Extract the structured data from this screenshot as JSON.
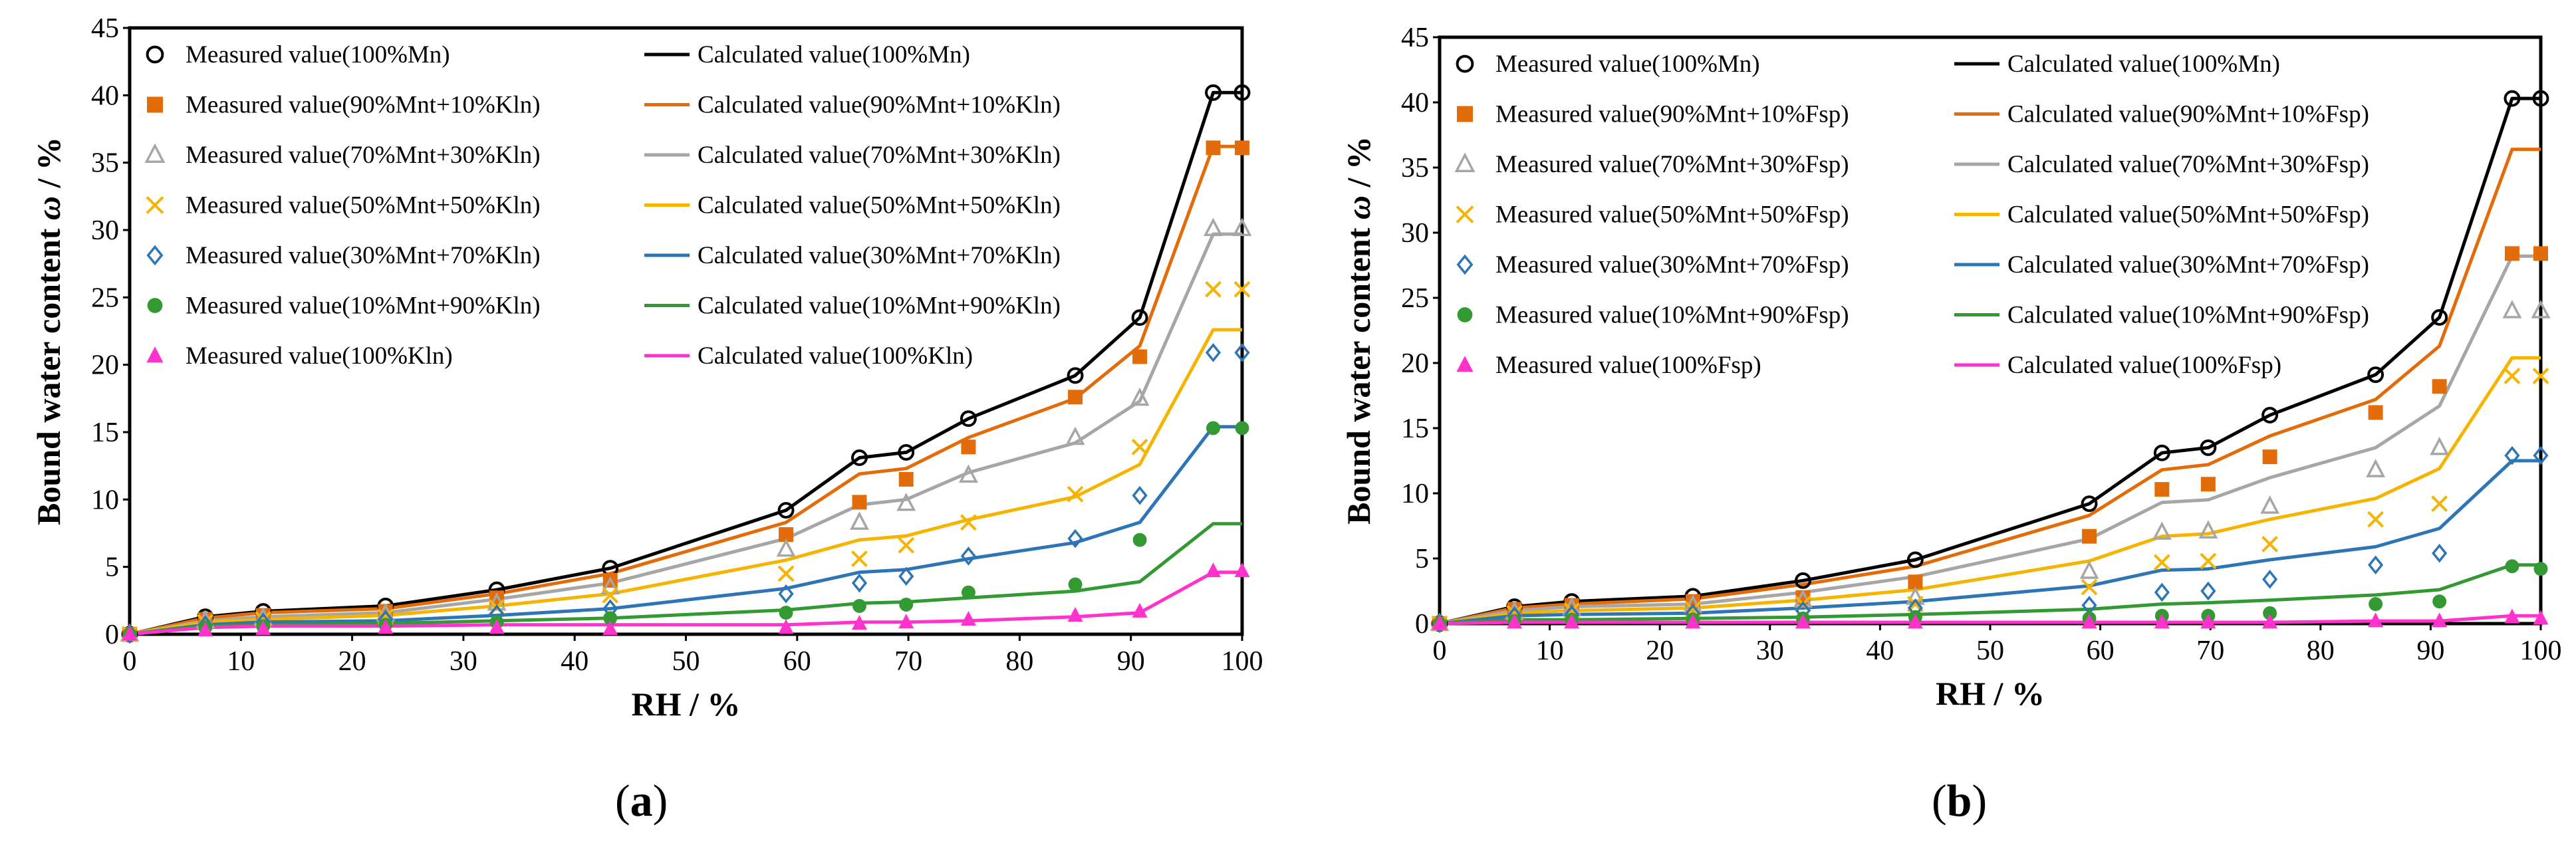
{
  "chart_data": [
    {
      "type": "scatter",
      "panel_label": "a",
      "xlabel": "RH / %",
      "ylabel_prefix": "Bound water content ",
      "ylabel_symbol": "ω",
      "ylabel_suffix": " / %",
      "xlim": [
        0,
        100
      ],
      "ylim": [
        0,
        45
      ],
      "xticks": [
        0,
        10,
        20,
        30,
        40,
        50,
        60,
        70,
        80,
        90,
        100
      ],
      "yticks": [
        0,
        5,
        10,
        15,
        20,
        25,
        30,
        35,
        40,
        45
      ],
      "x": [
        0,
        6.8,
        12,
        23,
        33,
        43.2,
        59,
        65.6,
        69.8,
        75.4,
        85,
        90.8,
        97.4,
        100
      ],
      "series": [
        {
          "measured_name": "Measured value(100%Mn)",
          "calculated_name": "Calculated value(100%Mn)",
          "marker": "circle-open",
          "color": "#000000",
          "measured": [
            0,
            1.3,
            1.7,
            2.1,
            3.3,
            4.9,
            9.2,
            13.1,
            13.5,
            16,
            19.2,
            23.5,
            40.2,
            40.2
          ],
          "calculated": [
            0,
            1.3,
            1.7,
            2.1,
            3.3,
            4.9,
            9.2,
            13.1,
            13.5,
            16,
            19.2,
            23.5,
            40.2,
            40.2
          ]
        },
        {
          "measured_name": "Measured value(90%Mnt+10%Kln)",
          "calculated_name": "Calculated value(90%Mnt+10%Kln)",
          "marker": "square",
          "color": "#E36C0A",
          "measured": [
            0,
            1.1,
            1.4,
            1.7,
            2.7,
            4,
            7.4,
            9.8,
            11.5,
            13.9,
            17.6,
            20.6,
            36.1,
            36.1
          ],
          "calculated": [
            0,
            1.2,
            1.6,
            1.9,
            3,
            4.5,
            8.3,
            11.9,
            12.3,
            14.6,
            17.5,
            21.4,
            36.2,
            36.2
          ]
        },
        {
          "measured_name": "Measured value(70%Mnt+30%Kln)",
          "calculated_name": "Calculated value(70%Mnt+30%Kln)",
          "marker": "triangle-open",
          "color": "#A6A6A6",
          "measured": [
            0,
            1,
            1.2,
            1.5,
            2.3,
            3.5,
            6.3,
            8.3,
            9.7,
            11.8,
            14.6,
            17.5,
            30.1,
            30.1
          ],
          "calculated": [
            0,
            1,
            1.3,
            1.6,
            2.6,
            3.8,
            7.1,
            9.6,
            10,
            12,
            14.2,
            17.3,
            29.7,
            29.7
          ]
        },
        {
          "measured_name": "Measured value(50%Mnt+50%Kln)",
          "calculated_name": "Calculated value(50%Mnt+50%Kln)",
          "marker": "x",
          "color": "#F4B400",
          "measured": [
            0,
            0.9,
            1.1,
            1.3,
            2,
            2.9,
            4.5,
            5.6,
            6.6,
            8.3,
            10.4,
            13.9,
            25.6,
            25.6
          ],
          "calculated": [
            0,
            0.9,
            1.1,
            1.4,
            2.1,
            3,
            5.5,
            7,
            7.3,
            8.5,
            10.2,
            12.6,
            22.6,
            22.6
          ]
        },
        {
          "measured_name": "Measured value(30%Mnt+70%Kln)",
          "calculated_name": "Calculated value(30%Mnt+70%Kln)",
          "marker": "diamond-open",
          "color": "#2E75B6",
          "measured": [
            0,
            0.7,
            0.9,
            1.1,
            1.5,
            1.9,
            3,
            3.8,
            4.3,
            5.8,
            7.1,
            10.3,
            20.9,
            20.9
          ],
          "calculated": [
            0,
            0.7,
            0.9,
            1,
            1.4,
            1.9,
            3.4,
            4.6,
            4.8,
            5.6,
            6.8,
            8.3,
            15.4,
            15.4
          ]
        },
        {
          "measured_name": "Measured value(10%Mnt+90%Kln)",
          "calculated_name": "Calculated value(10%Mnt+90%Kln)",
          "marker": "circle",
          "color": "#339933",
          "measured": [
            0,
            0.5,
            0.6,
            0.7,
            0.9,
            1.2,
            1.6,
            2.1,
            2.2,
            3.1,
            3.7,
            7,
            15.3,
            15.3
          ],
          "calculated": [
            0,
            0.6,
            0.7,
            0.8,
            1,
            1.2,
            1.8,
            2.3,
            2.4,
            2.7,
            3.2,
            3.9,
            8.2,
            8.2
          ]
        },
        {
          "measured_name": "Measured value(100%Kln)",
          "calculated_name": "Calculated value(100%Kln)",
          "marker": "triangle",
          "color": "#FF33CC",
          "measured": [
            0,
            0.3,
            0.4,
            0.5,
            0.5,
            0.4,
            0.5,
            0.8,
            0.9,
            1.1,
            1.4,
            1.7,
            4.7,
            4.7
          ],
          "calculated": [
            0,
            0.5,
            0.6,
            0.6,
            0.7,
            0.7,
            0.7,
            0.9,
            0.9,
            1,
            1.3,
            1.6,
            4.6,
            4.6
          ]
        }
      ]
    },
    {
      "type": "scatter",
      "panel_label": "b",
      "xlabel": "RH / %",
      "ylabel_prefix": "Bound water content ",
      "ylabel_symbol": "ω",
      "ylabel_suffix": " / %",
      "xlim": [
        0,
        100
      ],
      "ylim": [
        0,
        45
      ],
      "xticks": [
        0,
        10,
        20,
        30,
        40,
        50,
        60,
        70,
        80,
        90,
        100
      ],
      "yticks": [
        0,
        5,
        10,
        15,
        20,
        25,
        30,
        35,
        40,
        45
      ],
      "x": [
        0,
        6.8,
        12,
        23,
        33,
        43.2,
        59,
        65.6,
        69.8,
        75.4,
        85,
        90.8,
        97.4,
        100
      ],
      "series": [
        {
          "measured_name": "Measured value(100%Mn)",
          "calculated_name": "Calculated value(100%Mn)",
          "marker": "circle-open",
          "color": "#000000",
          "measured": [
            0,
            1.3,
            1.7,
            2.1,
            3.3,
            4.9,
            9.2,
            13.1,
            13.5,
            16,
            19.1,
            23.5,
            40.3,
            40.3
          ],
          "calculated": [
            0,
            1.3,
            1.7,
            2.1,
            3.3,
            4.9,
            9.2,
            13.1,
            13.5,
            16,
            19.1,
            23.5,
            40.3,
            40.3
          ]
        },
        {
          "measured_name": "Measured value(90%Mnt+10%Fsp)",
          "calculated_name": "Calculated value(90%Mnt+10%Fsp)",
          "marker": "square",
          "color": "#E36C0A",
          "measured": [
            0,
            1.1,
            1.4,
            1.7,
            2,
            3.2,
            6.7,
            10.3,
            10.7,
            12.8,
            16.2,
            18.2,
            28.4,
            28.4
          ],
          "calculated": [
            0,
            1.2,
            1.5,
            1.9,
            3,
            4.4,
            8.3,
            11.8,
            12.2,
            14.4,
            17.2,
            21.3,
            36.4,
            36.4
          ]
        },
        {
          "measured_name": "Measured value(70%Mnt+30%Fsp)",
          "calculated_name": "Calculated value(70%Mnt+30%Fsp)",
          "marker": "triangle-open",
          "color": "#A6A6A6",
          "measured": [
            0,
            0.9,
            1.2,
            1.4,
            1.8,
            2,
            4,
            7,
            7.1,
            9,
            11.8,
            13.5,
            24,
            24
          ],
          "calculated": [
            0,
            1,
            1.3,
            1.5,
            2.4,
            3.6,
            6.5,
            9.3,
            9.5,
            11.2,
            13.5,
            16.7,
            28.2,
            28.2
          ]
        },
        {
          "measured_name": "Measured value(50%Mnt+50%Fsp)",
          "calculated_name": "Calculated value(50%Mnt+50%Fsp)",
          "marker": "x",
          "color": "#F4B400",
          "measured": [
            0,
            0.8,
            1,
            1.1,
            1.5,
            1.5,
            2.8,
            4.7,
            4.8,
            6.1,
            8,
            9.2,
            19,
            19
          ],
          "calculated": [
            0,
            0.8,
            1,
            1.2,
            1.8,
            2.6,
            4.8,
            6.7,
            6.9,
            8,
            9.6,
            11.9,
            20.4,
            20.4
          ]
        },
        {
          "measured_name": "Measured value(30%Mnt+70%Fsp)",
          "calculated_name": "Calculated value(30%Mnt+70%Fsp)",
          "marker": "diamond-open",
          "color": "#2E75B6",
          "measured": [
            0,
            0.6,
            0.7,
            0.8,
            1,
            1.2,
            1.4,
            2.4,
            2.5,
            3.4,
            4.5,
            5.4,
            12.9,
            12.9
          ],
          "calculated": [
            0,
            0.6,
            0.7,
            0.8,
            1.2,
            1.7,
            2.9,
            4.1,
            4.2,
            4.9,
            5.9,
            7.3,
            12.5,
            12.5
          ]
        },
        {
          "measured_name": "Measured value(10%Mnt+90%Fsp)",
          "calculated_name": "Calculated value(10%Mnt+90%Fsp)",
          "marker": "circle",
          "color": "#339933",
          "measured": [
            0,
            0.2,
            0.3,
            0.3,
            0.4,
            0.5,
            0.4,
            0.6,
            0.6,
            0.8,
            1.5,
            1.7,
            4.4,
            4.2
          ],
          "calculated": [
            0,
            0.3,
            0.3,
            0.4,
            0.5,
            0.7,
            1.1,
            1.5,
            1.6,
            1.8,
            2.2,
            2.6,
            4.5,
            4.5
          ]
        },
        {
          "measured_name": "Measured value(100%Fsp)",
          "calculated_name": "Calculated value(100%Fsp)",
          "marker": "triangle",
          "color": "#FF33CC",
          "measured": [
            0,
            0.1,
            0.1,
            0.1,
            0.1,
            0.1,
            0.1,
            0.1,
            0.1,
            0.1,
            0.2,
            0.2,
            0.5,
            0.4
          ],
          "calculated": [
            0,
            0.1,
            0.1,
            0.1,
            0.1,
            0.1,
            0.1,
            0.1,
            0.1,
            0.1,
            0.2,
            0.2,
            0.6,
            0.6
          ]
        }
      ]
    }
  ]
}
